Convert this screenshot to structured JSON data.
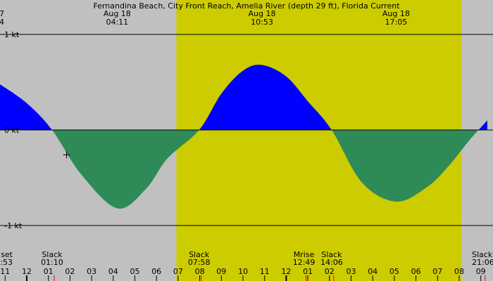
{
  "title": "Fernandina Beach, City Front Reach, Amelia River (depth 29 ft), Florida Current",
  "colors": {
    "night": "#c0c0c0",
    "day": "#cccc00",
    "flood": "#0000ff",
    "ebb": "#2e8b57",
    "axis": "#000000",
    "moon_mark": "#ff0000"
  },
  "chart_data": {
    "type": "area",
    "title": "Fernandina Beach, City Front Reach, Amelia River (depth 29 ft), Florida Current",
    "xlabel": "",
    "ylabel": "",
    "unit": "kt",
    "x_range_hours": [
      -1.25,
      21.3
    ],
    "ylim": [
      -1,
      1
    ],
    "grid": true,
    "y_ticks": [
      {
        "value": 1,
        "label": "1 kt"
      },
      {
        "value": 0,
        "label": "0 kt"
      },
      {
        "value": -1,
        "label": "-1 kt"
      }
    ],
    "daylight_hours": [
      6.92,
      20.1
    ],
    "curve": {
      "name": "",
      "x": [
        -1.25,
        0.0,
        1.17,
        2.5,
        4.18,
        5.5,
        6.5,
        7.97,
        9.0,
        10.0,
        10.88,
        12.0,
        13.0,
        14.1,
        15.5,
        17.08,
        18.5,
        19.5,
        20.5,
        21.3
      ],
      "y": [
        0.48,
        0.28,
        0.0,
        -0.46,
        -0.82,
        -0.62,
        -0.3,
        0.0,
        0.38,
        0.62,
        0.68,
        0.56,
        0.3,
        0.0,
        -0.55,
        -0.75,
        -0.6,
        -0.38,
        -0.1,
        0.1
      ]
    },
    "top_labels": [
      {
        "hour": -1.25,
        "date": "7",
        "time": "4"
      },
      {
        "hour": 4.18,
        "date": "Aug 18",
        "time": "04:11"
      },
      {
        "hour": 10.88,
        "date": "Aug 18",
        "time": "10:53"
      },
      {
        "hour": 17.08,
        "date": "Aug 18",
        "time": "17:05"
      }
    ],
    "bottom_events": [
      {
        "hour": -1.12,
        "label": "set",
        "time": ":53",
        "anchor": "end"
      },
      {
        "hour": 1.17,
        "label": "Slack",
        "time": "01:10",
        "anchor": "middle"
      },
      {
        "hour": 7.97,
        "label": "Slack",
        "time": "07:58",
        "anchor": "middle"
      },
      {
        "hour": 12.82,
        "label": "Mrise",
        "time": "12:49",
        "anchor": "middle"
      },
      {
        "hour": 14.1,
        "label": "Slack",
        "time": "14:06",
        "anchor": "middle"
      },
      {
        "hour": 21.1,
        "label": "Slack",
        "time": "21:06",
        "anchor": "start"
      }
    ],
    "hour_ticks": [
      "11",
      "12",
      "01",
      "02",
      "03",
      "04",
      "05",
      "06",
      "07",
      "08",
      "09",
      "10",
      "11",
      "12",
      "01",
      "02",
      "03",
      "04",
      "05",
      "06",
      "07",
      "08",
      "09"
    ],
    "hour_tick_start": -1,
    "moon_ticks": [
      1.17,
      7.97,
      12.82,
      14.1,
      21.1
    ],
    "marker": {
      "hour": 1.84,
      "value": -0.26
    }
  }
}
